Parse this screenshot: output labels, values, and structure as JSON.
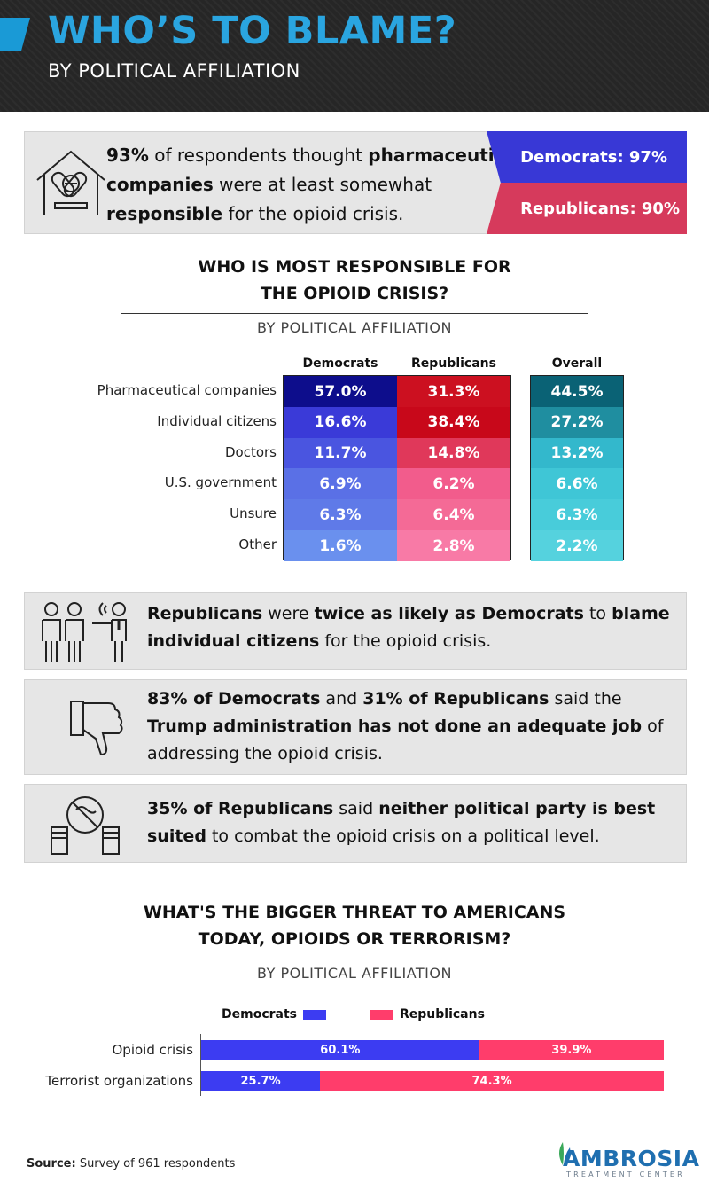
{
  "header": {
    "title": "WHO’S TO BLAME?",
    "subtitle": "BY POLITICAL AFFILIATION"
  },
  "callout": {
    "pct": "93%",
    "t1": " of respondents thought ",
    "bold1": "pharmaceutical companies",
    "t2": " were at least somewhat ",
    "bold2": "responsible",
    "t3": " for the opioid crisis.",
    "democrats": "Democrats: 97%",
    "republicans": "Republicans: 90%"
  },
  "section1": {
    "title_line1": "WHO IS MOST RESPONSIBLE FOR",
    "title_line2": "THE OPIOID CRISIS?",
    "subtitle": "BY POLITICAL AFFILIATION"
  },
  "info": {
    "box1": {
      "b1": "Republicans",
      "t1": " were ",
      "b2": "twice as likely as Democrats",
      "t2": " to ",
      "b3": "blame individual citizens",
      "t3": " for the opioid crisis."
    },
    "box2": {
      "b1": "83% of Democrats",
      "t1": " and ",
      "b2": "31% of Republicans",
      "t2": " said the ",
      "b3": "Trump administration has not done an adequate job",
      "t3": " of addressing the opioid crisis."
    },
    "box3": {
      "b1": "35% of Republicans",
      "t1": " said ",
      "b2": "neither political party is best suited",
      "t2": " to combat the opioid crisis on a political level."
    }
  },
  "section2": {
    "title_line1": "WHAT'S THE BIGGER THREAT TO AMERICANS",
    "title_line2": "TODAY, OPIOIDS OR TERRORISM?",
    "subtitle": "BY POLITICAL AFFILIATION"
  },
  "source": {
    "label": "Source:",
    "text": " Survey of 961 respondents"
  },
  "logo": {
    "word": "AMBROSIA",
    "tag": "TREATMENT CENTER"
  },
  "colors": {
    "dem": "#3838d6",
    "rep": "#ff3d6b",
    "accent": "#2aa5e0"
  },
  "chart_data": [
    {
      "type": "table",
      "title": "WHO IS MOST RESPONSIBLE FOR THE OPIOID CRISIS?",
      "subtitle": "BY POLITICAL AFFILIATION",
      "columns": [
        "Democrats",
        "Republicans",
        "Overall"
      ],
      "rows": [
        {
          "label": "Pharmaceutical companies",
          "values": [
            "57.0%",
            "31.3%",
            "44.5%"
          ],
          "colors": [
            "#0d0d8c",
            "#cc1020",
            "#0a6275"
          ]
        },
        {
          "label": "Individual citizens",
          "values": [
            "16.6%",
            "38.4%",
            "27.2%"
          ],
          "colors": [
            "#3a3ad8",
            "#c8081a",
            "#1f8ea0"
          ]
        },
        {
          "label": "Doctors",
          "values": [
            "11.7%",
            "14.8%",
            "13.2%"
          ],
          "colors": [
            "#4a55e0",
            "#e0385a",
            "#33b8cc"
          ]
        },
        {
          "label": "U.S. government",
          "values": [
            "6.9%",
            "6.2%",
            "6.6%"
          ],
          "colors": [
            "#5a70e6",
            "#f25c8c",
            "#3fc6d6"
          ]
        },
        {
          "label": "Unsure",
          "values": [
            "6.3%",
            "6.4%",
            "6.3%"
          ],
          "colors": [
            "#5f7ae8",
            "#f46a96",
            "#48ccda"
          ]
        },
        {
          "label": "Other",
          "values": [
            "1.6%",
            "2.8%",
            "2.2%"
          ],
          "colors": [
            "#6a90ee",
            "#f87aa6",
            "#55d2de"
          ]
        }
      ]
    },
    {
      "type": "bar",
      "stacked": true,
      "orientation": "horizontal",
      "title": "WHAT'S THE BIGGER THREAT TO AMERICANS TODAY, OPIOIDS OR TERRORISM?",
      "subtitle": "BY POLITICAL AFFILIATION",
      "categories": [
        "Opioid crisis",
        "Terrorist organizations"
      ],
      "series": [
        {
          "name": "Democrats",
          "values": [
            60.1,
            25.7
          ],
          "labels": [
            "60.1%",
            "25.7%"
          ],
          "color": "#3c3cf2"
        },
        {
          "name": "Republicans",
          "values": [
            39.9,
            74.3
          ],
          "labels": [
            "39.9%",
            "74.3%"
          ],
          "color": "#ff3d6b"
        }
      ],
      "xlim": [
        0,
        100
      ],
      "legend": "top"
    }
  ]
}
